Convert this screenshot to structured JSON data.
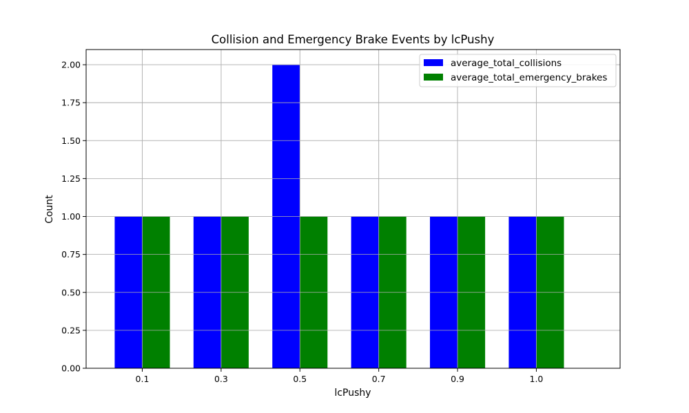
{
  "chart_data": {
    "type": "bar",
    "title": "Collision and Emergency Brake Events by lcPushy",
    "xlabel": "lcPushy",
    "ylabel": "Count",
    "categories": [
      "0.1",
      "0.3",
      "0.5",
      "0.7",
      "0.9",
      "1.0"
    ],
    "series": [
      {
        "name": "average_total_collisions",
        "values": [
          1,
          1,
          2,
          1,
          1,
          1
        ],
        "color": "#0000ff"
      },
      {
        "name": "average_total_emergency_brakes",
        "values": [
          1,
          1,
          1,
          1,
          1,
          1
        ],
        "color": "#008000"
      }
    ],
    "ylim": [
      0,
      2.1
    ],
    "yticks": [
      "0.00",
      "0.25",
      "0.50",
      "0.75",
      "1.00",
      "1.25",
      "1.50",
      "1.75",
      "2.00"
    ],
    "grid": true,
    "legend_position": "upper-right"
  }
}
